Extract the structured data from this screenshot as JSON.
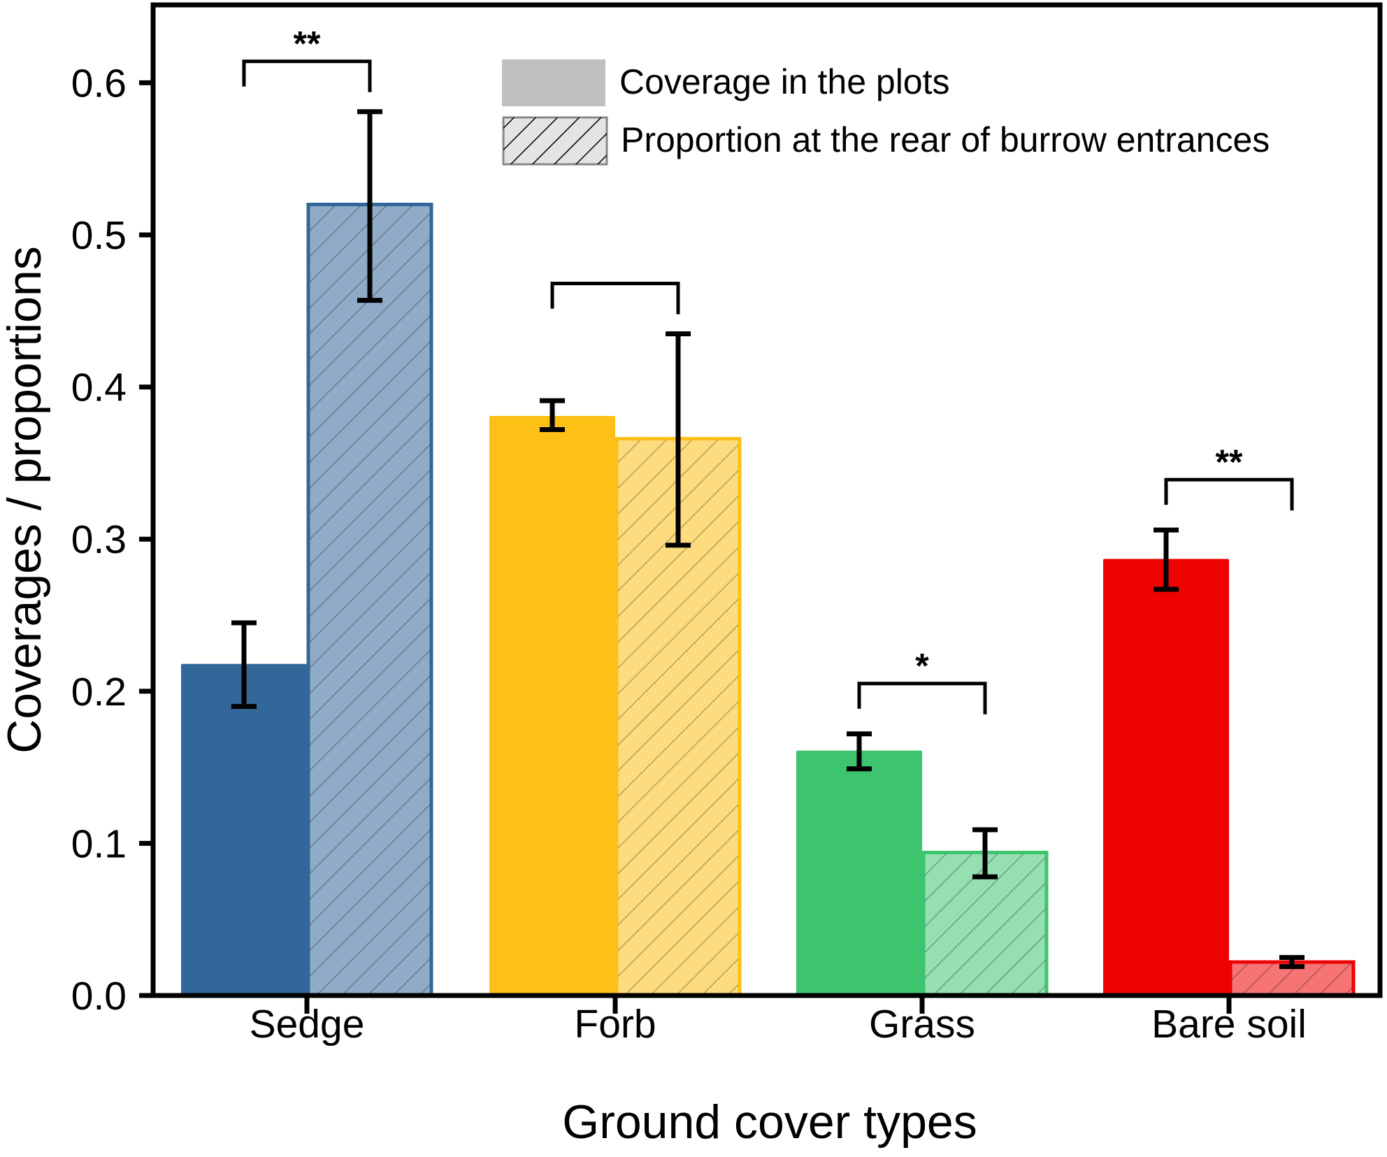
{
  "chart_data": {
    "type": "bar",
    "title": "",
    "xlabel": "Ground cover types",
    "ylabel": "Coverages / proportions",
    "ylim": [
      0,
      0.65
    ],
    "yticks": [
      "0.0",
      "0.1",
      "0.2",
      "0.3",
      "0.4",
      "0.5",
      "0.6"
    ],
    "grid": false,
    "legend_position": "top-right",
    "categories": [
      "Sedge",
      "Forb",
      "Grass",
      "Bare soil"
    ],
    "category_colors": [
      "#336699",
      "#FCC016",
      "#3EC46F",
      "#EE0202"
    ],
    "series": [
      {
        "name": "Coverage in the plots",
        "pattern": "solid",
        "values": [
          0.218,
          0.381,
          0.161,
          0.287
        ],
        "error_low": [
          0.19,
          0.372,
          0.149,
          0.267
        ],
        "error_high": [
          0.245,
          0.391,
          0.172,
          0.306
        ]
      },
      {
        "name": "Proportion at the rear of burrow entrances",
        "pattern": "hatched",
        "values": [
          0.52,
          0.366,
          0.094,
          0.022
        ],
        "error_low": [
          0.457,
          0.296,
          0.078,
          0.019
        ],
        "error_high": [
          0.581,
          0.435,
          0.109,
          0.025
        ]
      }
    ],
    "significance": [
      {
        "category": "Sedge",
        "label": "**"
      },
      {
        "category": "Forb",
        "label": ""
      },
      {
        "category": "Grass",
        "label": "*"
      },
      {
        "category": "Bare soil",
        "label": "**"
      }
    ]
  }
}
